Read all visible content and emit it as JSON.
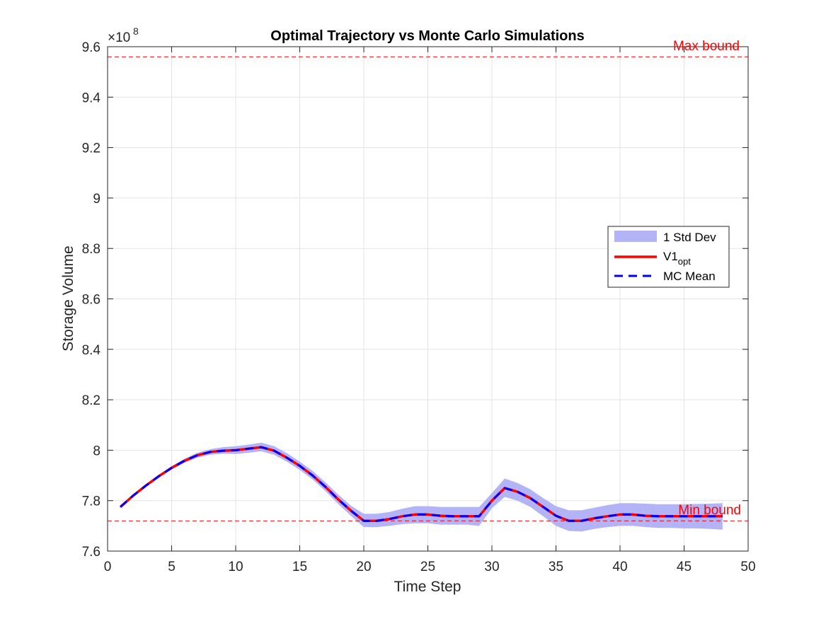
{
  "chart_data": {
    "type": "line",
    "title": "Optimal Trajectory vs Monte Carlo Simulations",
    "xlabel": "Time Step",
    "ylabel": "Storage Volume",
    "y_exponent_base": "×10",
    "y_exponent_power": "8",
    "xlim": [
      0,
      50
    ],
    "ylim": [
      7.6,
      9.6
    ],
    "x_ticks": [
      0,
      5,
      10,
      15,
      20,
      25,
      30,
      35,
      40,
      45,
      50
    ],
    "x_tick_labels": [
      "0",
      "5",
      "10",
      "15",
      "20",
      "25",
      "30",
      "35",
      "40",
      "45",
      "50"
    ],
    "y_ticks": [
      7.6,
      7.8,
      8,
      8.2,
      8.4,
      8.6,
      8.8,
      9,
      9.2,
      9.4,
      9.6
    ],
    "y_tick_labels": [
      "7.6",
      "7.8",
      "8",
      "8.2",
      "8.4",
      "8.6",
      "8.8",
      "9",
      "9.2",
      "9.4",
      "9.6"
    ],
    "grid": true,
    "legend_position": "center-right",
    "x": [
      1,
      2,
      3,
      4,
      5,
      6,
      7,
      8,
      9,
      10,
      11,
      12,
      13,
      14,
      15,
      16,
      17,
      18,
      19,
      20,
      21,
      22,
      23,
      24,
      25,
      26,
      27,
      28,
      29,
      30,
      31,
      32,
      33,
      34,
      35,
      36,
      37,
      38,
      39,
      40,
      41,
      42,
      43,
      44,
      45,
      46,
      47,
      48
    ],
    "series": [
      {
        "name": "V1",
        "name_subscript": "opt",
        "color": "#ff0000",
        "style": "solid",
        "values": [
          7.775,
          7.82,
          7.86,
          7.897,
          7.93,
          7.958,
          7.98,
          7.993,
          7.998,
          8.0,
          8.006,
          8.012,
          7.998,
          7.97,
          7.938,
          7.9,
          7.855,
          7.805,
          7.76,
          7.72,
          7.72,
          7.727,
          7.738,
          7.745,
          7.745,
          7.74,
          7.738,
          7.738,
          7.738,
          7.8,
          7.85,
          7.835,
          7.81,
          7.775,
          7.74,
          7.72,
          7.72,
          7.73,
          7.738,
          7.745,
          7.745,
          7.74,
          7.738,
          7.738,
          7.738,
          7.738,
          7.738,
          7.738
        ]
      },
      {
        "name": "MC Mean",
        "color": "#0000ff",
        "style": "dashed",
        "values": [
          7.775,
          7.82,
          7.86,
          7.897,
          7.93,
          7.958,
          7.98,
          7.993,
          7.998,
          8.0,
          8.006,
          8.012,
          7.998,
          7.97,
          7.938,
          7.9,
          7.855,
          7.805,
          7.76,
          7.72,
          7.72,
          7.727,
          7.738,
          7.745,
          7.745,
          7.74,
          7.738,
          7.738,
          7.738,
          7.8,
          7.85,
          7.835,
          7.81,
          7.775,
          7.74,
          7.72,
          7.72,
          7.73,
          7.738,
          7.745,
          7.745,
          7.74,
          7.738,
          7.738,
          7.738,
          7.738,
          7.738,
          7.738
        ]
      }
    ],
    "band": {
      "name": "1 Std Dev",
      "color": "#b3b3f7",
      "lower": [
        7.77,
        7.815,
        7.856,
        7.892,
        7.924,
        7.95,
        7.97,
        7.982,
        7.986,
        7.985,
        7.99,
        7.996,
        7.982,
        7.954,
        7.922,
        7.884,
        7.838,
        7.787,
        7.74,
        7.695,
        7.695,
        7.7,
        7.707,
        7.71,
        7.71,
        7.705,
        7.705,
        7.705,
        7.7,
        7.77,
        7.815,
        7.8,
        7.775,
        7.738,
        7.7,
        7.68,
        7.678,
        7.688,
        7.695,
        7.7,
        7.7,
        7.695,
        7.692,
        7.692,
        7.69,
        7.69,
        7.688,
        7.685
      ],
      "upper": [
        7.78,
        7.825,
        7.866,
        7.902,
        7.937,
        7.966,
        7.99,
        8.004,
        8.012,
        8.016,
        8.022,
        8.03,
        8.016,
        7.988,
        7.955,
        7.918,
        7.873,
        7.824,
        7.78,
        7.748,
        7.748,
        7.755,
        7.768,
        7.778,
        7.778,
        7.775,
        7.775,
        7.775,
        7.775,
        7.83,
        7.888,
        7.87,
        7.845,
        7.81,
        7.778,
        7.762,
        7.762,
        7.772,
        7.782,
        7.79,
        7.79,
        7.788,
        7.786,
        7.786,
        7.786,
        7.787,
        7.788,
        7.79
      ]
    },
    "reference_lines": [
      {
        "label": "Max bound",
        "y": 9.56,
        "color": "#ff0000"
      },
      {
        "label": "Min bound",
        "y": 7.72,
        "color": "#ff0000"
      }
    ]
  }
}
